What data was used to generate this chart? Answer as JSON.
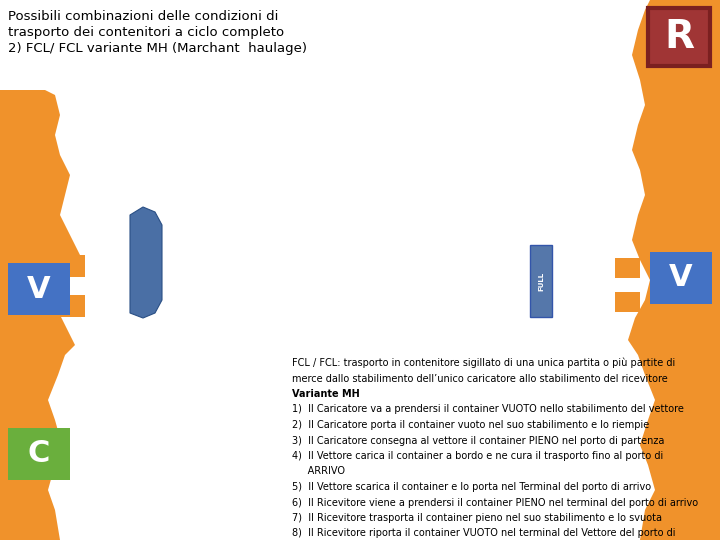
{
  "title_line1": "Possibili combinazioni delle condizioni di",
  "title_line2": "trasporto dei contenitori a ciclo completo",
  "title_line3": "2) FCL/ FCL variante MH (Marchant  haulage)",
  "white_bg": "#FFFFFF",
  "orange": "#F0922B",
  "red_box_face": "#A03535",
  "red_box_edge": "#7B2020",
  "blue_box": "#4472C4",
  "blue_ship": "#4A6FA5",
  "green_box": "#6AAF3D",
  "desc_text": [
    "FCL / FCL: trasporto in contenitore sigillato di una unica partita o più partite di",
    "merce dallo stabilimento dell’unico caricatore allo stabilimento del ricevitore",
    "Variante MH",
    "1)  Il Caricatore va a prendersi il container VUOTO nello stabilimento del vettore",
    "2)  Il Caricatore porta il container vuoto nel suo stabilimento e lo riempie",
    "3)  Il Caricatore consegna al vettore il container PIENO nel porto di partenza",
    "4)  Il Vettore carica il container a bordo e ne cura il trasporto fino al porto di",
    "     ARRIVO",
    "5)  Il Vettore scarica il container e lo porta nel Terminal del porto di arrivo",
    "6)  Il Ricevitore viene a prendersi il container PIENO nel terminal del porto di arrivo",
    "7)  Il Ricevitore trasporta il container pieno nel suo stabilimento e lo svuota",
    "8)  Il Ricevitore riporta il container VUOTO nel terminal del Vettore del porto di"
  ]
}
